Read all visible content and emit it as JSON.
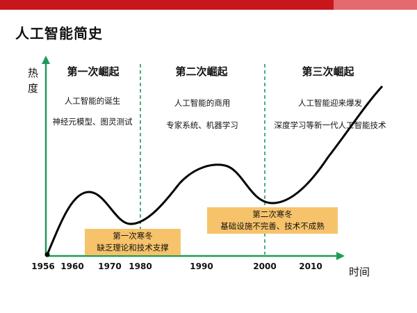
{
  "title": "人工智能简史",
  "y_axis_label": [
    "热",
    "度"
  ],
  "x_axis_label": "时间",
  "eras": [
    {
      "title": "第一次崛起",
      "lines": [
        "人工智能的诞生",
        "神经元模型、图灵测试"
      ]
    },
    {
      "title": "第二次崛起",
      "lines": [
        "人工智能的商用",
        "专家系统、机器学习"
      ]
    },
    {
      "title": "第三次崛起",
      "lines": [
        "人工智能迎来爆发",
        "深度学习等新一代人工智能技术"
      ]
    }
  ],
  "winters": [
    {
      "title": "第一次寒冬",
      "desc": "缺乏理论和技术支撑"
    },
    {
      "title": "第二次寒冬",
      "desc": "基础设施不完善、技术不成熟"
    }
  ],
  "ticks": [
    "1956",
    "1960",
    "1970",
    "1980",
    "1990",
    "2000",
    "2010"
  ],
  "colors": {
    "accent": "#c8161d",
    "axis": "#1e9a5a",
    "winter_box": "#f7c36a",
    "curve": "#000000"
  }
}
